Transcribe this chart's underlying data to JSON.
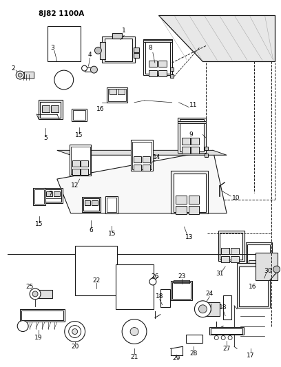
{
  "title": "8J82 1100A",
  "bg_color": "#ffffff",
  "lc": "#1a1a1a",
  "fig_width": 4.08,
  "fig_height": 5.33,
  "dpi": 100
}
